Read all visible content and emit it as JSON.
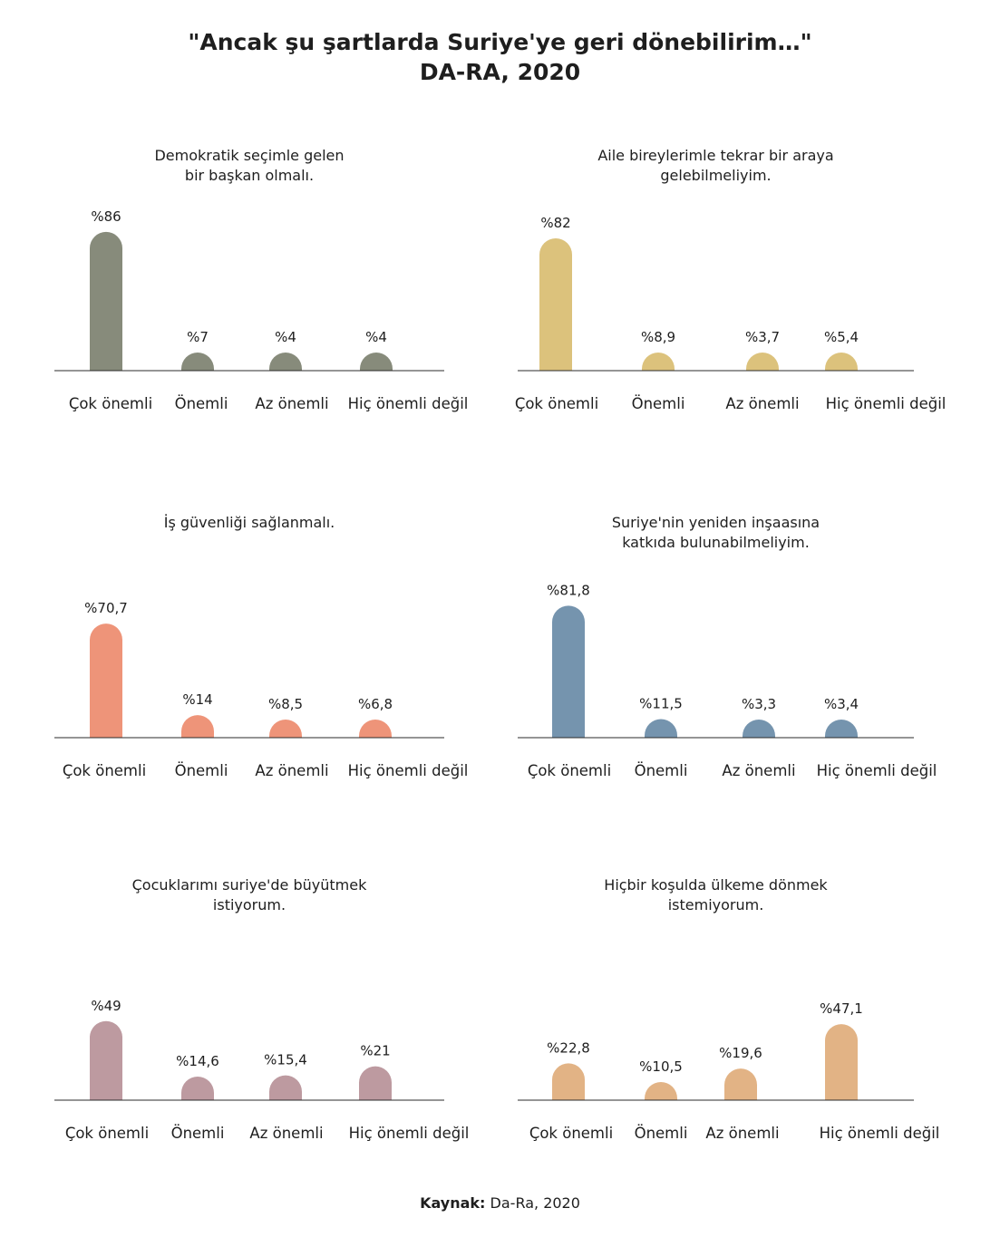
{
  "title": {
    "line1": "\"Ancak şu şartlarda Suriye'ye geri dönebilirim…\"",
    "line2": "DA-RA, 2020"
  },
  "source": {
    "label": "Kaynak:",
    "text": "Da-Ra, 2020"
  },
  "chart_data": [
    {
      "type": "bar",
      "title": [
        "Demokratik seçimle gelen",
        "bir başkan olmalı."
      ],
      "categories": [
        "Çok önemli",
        "Önemli",
        "Az önemli",
        "Hiç önemli değil"
      ],
      "values": [
        86,
        7,
        4,
        4
      ],
      "labels": [
        "%86",
        "%7",
        "%4",
        "%4"
      ],
      "color": "#878b7b"
    },
    {
      "type": "bar",
      "title": [
        "Aile bireylerimle tekrar bir araya",
        "gelebilmeliyim."
      ],
      "categories": [
        "Çok önemli",
        "Önemli",
        "Az önemli",
        "Hiç önemli değil"
      ],
      "values": [
        82,
        8.9,
        3.7,
        5.4
      ],
      "labels": [
        "%82",
        "%8,9",
        "%3,7",
        "%5,4"
      ],
      "color": "#dcc27c"
    },
    {
      "type": "bar",
      "title": [
        "İş güvenliği sağlanmalı."
      ],
      "categories": [
        "Çok önemli",
        "Önemli",
        "Az önemli",
        "Hiç önemli değil"
      ],
      "values": [
        70.7,
        14,
        8.5,
        6.8
      ],
      "labels": [
        "%70,7",
        "%14",
        "%8,5",
        "%6,8"
      ],
      "color": "#ee9479"
    },
    {
      "type": "bar",
      "title": [
        "Suriye'nin yeniden inşaasına",
        "katkıda bulunabilmeliyim."
      ],
      "categories": [
        "Çok önemli",
        "Önemli",
        "Az önemli",
        "Hiç önemli değil"
      ],
      "values": [
        81.8,
        11.5,
        3.3,
        3.4
      ],
      "labels": [
        "%81,8",
        "%11,5",
        "%3,3",
        "%3,4"
      ],
      "color": "#7594ae"
    },
    {
      "type": "bar",
      "title": [
        "Çocuklarımı suriye'de büyütmek",
        "istiyorum."
      ],
      "categories": [
        "Çok önemli",
        "Önemli",
        "Az önemli",
        "Hiç önemli değil"
      ],
      "values": [
        49,
        14.6,
        15.4,
        21
      ],
      "labels": [
        "%49",
        "%14,6",
        "%15,4",
        "%21"
      ],
      "color": "#bd9aa0"
    },
    {
      "type": "bar",
      "title": [
        "Hiçbir koşulda ülkeme dönmek",
        "istemiyorum."
      ],
      "categories": [
        "Çok önemli",
        "Önemli",
        "Az önemli",
        "Hiç önemli değil"
      ],
      "values": [
        22.8,
        10.5,
        19.6,
        47.1
      ],
      "labels": [
        "%22,8",
        "%10,5",
        "%19,6",
        "%47,1"
      ],
      "color": "#e2b385"
    }
  ]
}
